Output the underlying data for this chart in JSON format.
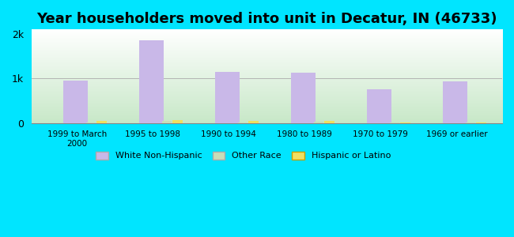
{
  "title": "Year householders moved into unit in Decatur, IN (46733)",
  "categories": [
    "1999 to March\n2000",
    "1995 to 1998",
    "1990 to 1994",
    "1980 to 1989",
    "1970 to 1979",
    "1969 or earlier"
  ],
  "white_non_hispanic": [
    950,
    1850,
    1150,
    1130,
    750,
    930
  ],
  "other_race": [
    20,
    55,
    15,
    25,
    10,
    15
  ],
  "hispanic_or_latino": [
    45,
    65,
    50,
    45,
    18,
    20
  ],
  "bar_color_white": "#c9b8e8",
  "bar_color_other": "#c8ddb8",
  "bar_color_hispanic": "#f0e060",
  "bg_outer": "#00e5ff",
  "yticks": [
    0,
    1000,
    2000
  ],
  "ytick_labels": [
    "0",
    "1k",
    "2k"
  ],
  "ylim": [
    0,
    2100
  ],
  "title_fontsize": 13,
  "bar_width": 0.18,
  "legend_labels": [
    "White Non-Hispanic",
    "Other Race",
    "Hispanic or Latino"
  ]
}
